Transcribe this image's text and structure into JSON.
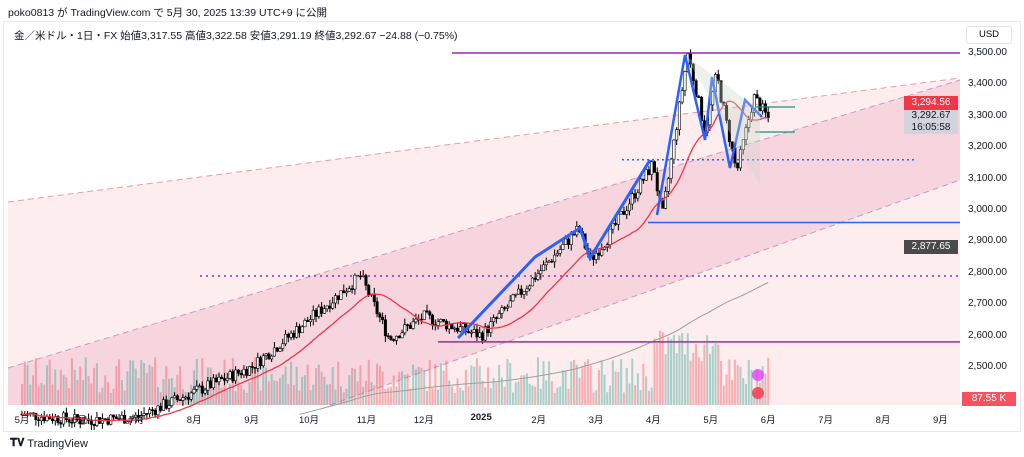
{
  "publish_line": "poko0813 が TradingView.com で 5月 30, 2025 13:39 UTC+9 に公開",
  "legend": "金／米ドル・1日・FX  始値3,317.55  高値3,322.58  安値3,291.19  終値3,292.67  −24.88 (−0.75%)",
  "currency": "USD",
  "tags": {
    "high_price": "3,294.56",
    "last_price": "3,292.67",
    "countdown": "16:05:58",
    "ma_value": "2,877.65",
    "volume": "87.55 K"
  },
  "brand": "TradingView",
  "colors": {
    "up": "#089981",
    "down": "#f23645",
    "ma": "#f23645",
    "ma200": "#9e9e9e",
    "purple": "#9c27b0",
    "blue": "#2962ff"
  },
  "chart_data": {
    "type": "candlestick",
    "title": "金／米ドル・1日・FX",
    "ylabel": "USD",
    "ylim": [
      2400,
      3600
    ],
    "y_ticks": [
      "3,500.00",
      "3,400.00",
      "3,300.00",
      "3,200.00",
      "3,100.00",
      "3,000.00",
      "2,900.00",
      "2,800.00",
      "2,700.00",
      "2,600.00",
      "2,500.00"
    ],
    "x_ticks": [
      "5月",
      "6月",
      "7月",
      "8月",
      "9月",
      "10月",
      "11月",
      "12月",
      "2025",
      "2月",
      "3月",
      "4月",
      "5月",
      "6月",
      "7月",
      "8月",
      "9月"
    ],
    "price_path_by_month": [
      [
        0,
        2350
      ],
      [
        1,
        2330
      ],
      [
        2,
        2340
      ],
      [
        3,
        2420
      ],
      [
        4,
        2500
      ],
      [
        5,
        2650
      ],
      [
        5.9,
        2790
      ],
      [
        6.4,
        2590
      ],
      [
        7,
        2660
      ],
      [
        8,
        2600
      ],
      [
        9,
        2800
      ],
      [
        9.7,
        2940
      ],
      [
        9.9,
        2840
      ],
      [
        10.2,
        2910
      ],
      [
        11,
        3150
      ],
      [
        11.15,
        2970
      ],
      [
        11.6,
        3500
      ],
      [
        11.9,
        3250
      ],
      [
        12.1,
        3430
      ],
      [
        12.45,
        3120
      ],
      [
        12.75,
        3360
      ],
      [
        13,
        3292
      ]
    ],
    "horizontal_levels": [
      3500,
      3160,
      2960,
      2790,
      2580
    ]
  }
}
